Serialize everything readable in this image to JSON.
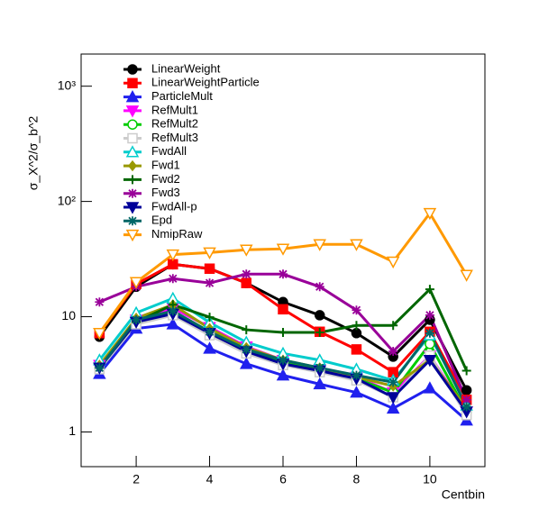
{
  "chart_data": {
    "type": "line",
    "log_y": true,
    "y_label": "σ_X^2/σ_b^2",
    "x_label": "Centbin",
    "xlim": [
      0.5,
      11.5
    ],
    "xticks": [
      2,
      4,
      6,
      8,
      10
    ],
    "ylim": [
      0.5,
      1900
    ],
    "yticks": [
      1,
      10,
      {
        "value": 100,
        "label": "10²"
      },
      {
        "value": 1000,
        "label": "10³"
      }
    ],
    "x": [
      1,
      2,
      3,
      4,
      5,
      6,
      7,
      8,
      9,
      10,
      11
    ],
    "series": [
      {
        "name": "LinearWeight",
        "color": "#000000",
        "marker": "circle",
        "values": [
          6.7,
          18.2,
          28.5,
          26.1,
          19.6,
          13.4,
          10.3,
          7.2,
          4.5,
          9.4,
          2.3
        ]
      },
      {
        "name": "LinearWeightParticle",
        "color": "#ff0000",
        "marker": "square",
        "values": [
          7.2,
          19.2,
          28.5,
          26.1,
          19.6,
          11.6,
          7.4,
          5.2,
          3.3,
          7.4,
          1.9
        ]
      },
      {
        "name": "ParticleMult",
        "color": "#2020ee",
        "marker": "triangle",
        "values": [
          3.2,
          7.9,
          8.6,
          5.3,
          3.9,
          3.1,
          2.6,
          2.2,
          1.6,
          2.4,
          1.26
        ]
      },
      {
        "name": "RefMult1",
        "color": "#ff00ff",
        "marker": "triangle-down",
        "values": [
          3.8,
          9.4,
          11.9,
          8.1,
          5.5,
          4.2,
          3.5,
          3.0,
          2.2,
          4.6,
          1.5
        ]
      },
      {
        "name": "RefMult2",
        "color": "#00cc00",
        "marker": "open-circle",
        "values": [
          3.6,
          8.9,
          11.2,
          7.4,
          5.0,
          4.0,
          3.4,
          2.9,
          2.2,
          5.8,
          1.5
        ]
      },
      {
        "name": "RefMult3",
        "color": "#cccccc",
        "marker": "open-square",
        "values": [
          3.5,
          8.6,
          10.3,
          6.9,
          4.8,
          3.8,
          3.3,
          2.8,
          2.0,
          4.6,
          1.4
        ]
      },
      {
        "name": "FwdAll",
        "color": "#00cccc",
        "marker": "open-triangle",
        "values": [
          4.2,
          10.8,
          14.4,
          8.9,
          6.0,
          4.8,
          4.2,
          3.5,
          2.8,
          6.9,
          1.7
        ]
      },
      {
        "name": "Fwd1",
        "color": "#999900",
        "marker": "diamond",
        "values": [
          3.8,
          9.7,
          12.7,
          7.9,
          5.4,
          4.2,
          3.6,
          3.0,
          2.5,
          4.2,
          1.6
        ]
      },
      {
        "name": "Fwd2",
        "color": "#006600",
        "marker": "cross",
        "values": [
          3.6,
          9.0,
          12.7,
          9.9,
          7.7,
          7.3,
          7.3,
          8.4,
          8.4,
          17.3,
          3.4
        ]
      },
      {
        "name": "Fwd3",
        "color": "#990099",
        "marker": "star",
        "values": [
          13.4,
          18.2,
          21.4,
          19.6,
          23.4,
          23.4,
          18.2,
          11.4,
          5.0,
          10.3,
          1.9
        ]
      },
      {
        "name": "FwdAll-p",
        "color": "#000099",
        "marker": "triangle-down",
        "values": [
          3.6,
          9.0,
          10.6,
          7.2,
          5.0,
          3.9,
          3.4,
          2.9,
          2.0,
          4.2,
          1.5
        ]
      },
      {
        "name": "Epd",
        "color": "#006666",
        "marker": "star",
        "values": [
          3.6,
          9.4,
          11.2,
          7.4,
          5.2,
          4.2,
          3.6,
          3.1,
          2.7,
          7.2,
          1.65
        ]
      },
      {
        "name": "NmipRaw",
        "color": "#ff9900",
        "marker": "open-triangle-down",
        "values": [
          7.2,
          19.9,
          34.6,
          36.0,
          38.1,
          38.8,
          42.4,
          42.4,
          30.0,
          79.1,
          23.0
        ]
      }
    ]
  }
}
